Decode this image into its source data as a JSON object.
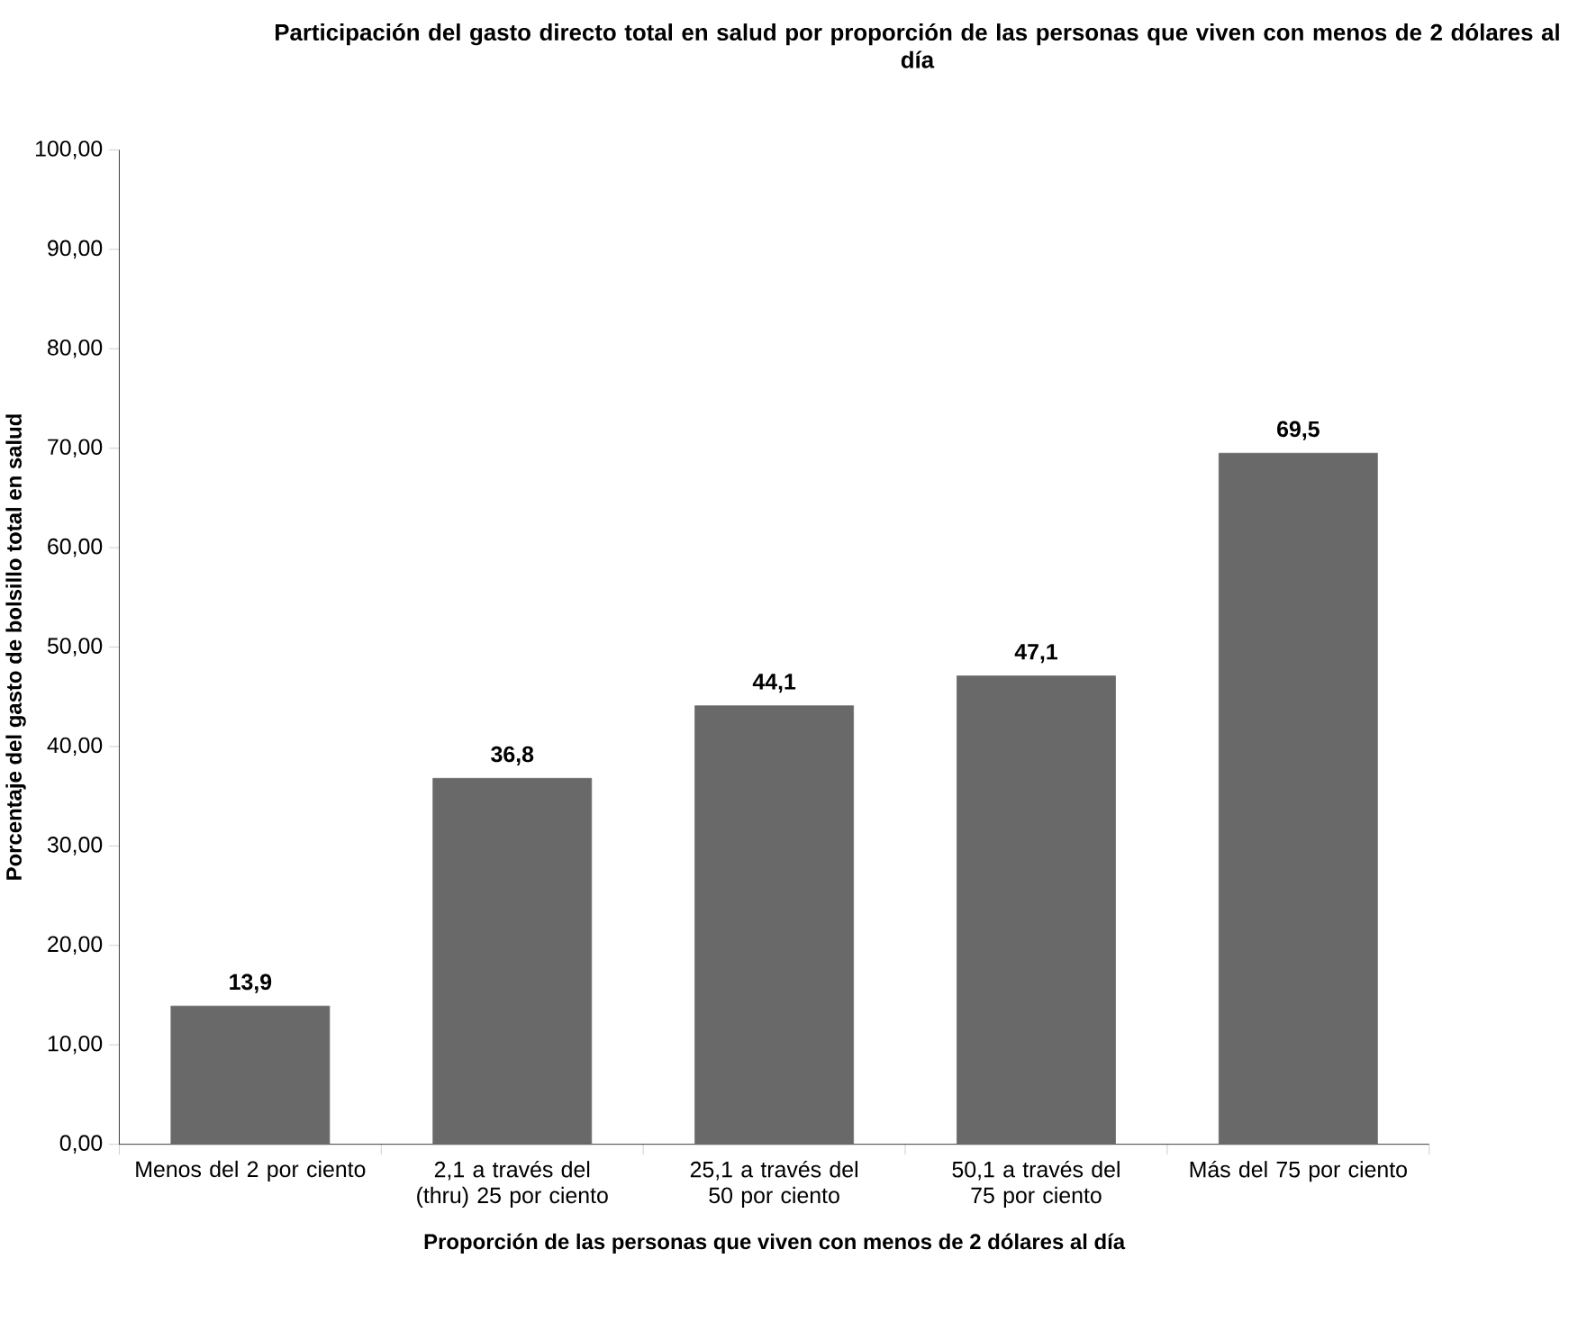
{
  "chart_data": {
    "type": "bar",
    "title": "Participación del gasto directo total en salud por proporción de las personas que viven con menos de 2 dólares al día",
    "xlabel": "Proporción de las personas que viven con menos de 2 dólares al día",
    "ylabel": "Porcentaje del gasto de bolsillo total en salud",
    "categories": [
      "Menos del 2 por ciento",
      "2,1 a través del (thru) 25 por ciento",
      "25,1 a través del 50 por ciento",
      "50,1 a través del 75 por ciento",
      "Más del 75 por ciento"
    ],
    "values": [
      13.9,
      36.8,
      44.1,
      47.1,
      69.5
    ],
    "value_labels": [
      "13,9",
      "36,8",
      "44,1",
      "47,1",
      "69,5"
    ],
    "color": "#696969",
    "ylim": [
      0,
      100
    ],
    "yticks": [
      {
        "value": 0,
        "label": "0,00"
      },
      {
        "value": 10,
        "label": "10,00"
      },
      {
        "value": 20,
        "label": "20,00"
      },
      {
        "value": 30,
        "label": "30,00"
      },
      {
        "value": 40,
        "label": "40,00"
      },
      {
        "value": 50,
        "label": "50,00"
      },
      {
        "value": 60,
        "label": "60,00"
      },
      {
        "value": 70,
        "label": "70,00"
      },
      {
        "value": 80,
        "label": "80,00"
      },
      {
        "value": 90,
        "label": "90,00"
      },
      {
        "value": 100,
        "label": "100,00"
      }
    ],
    "grid": false
  }
}
